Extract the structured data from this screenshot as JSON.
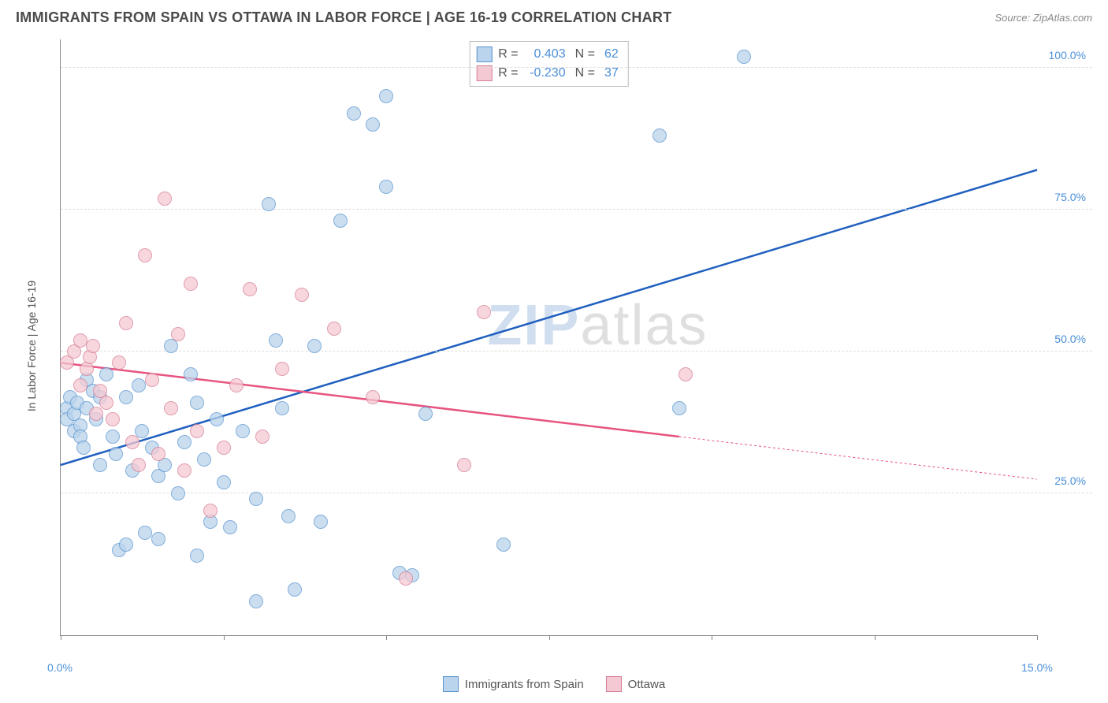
{
  "header": {
    "title": "IMMIGRANTS FROM SPAIN VS OTTAWA IN LABOR FORCE | AGE 16-19 CORRELATION CHART",
    "source": "Source: ZipAtlas.com"
  },
  "watermark": {
    "z": "ZIP",
    "rest": "atlas"
  },
  "chart": {
    "type": "scatter",
    "ylabel": "In Labor Force | Age 16-19",
    "xlim": [
      0,
      15
    ],
    "ylim": [
      0,
      105
    ],
    "yticks": [
      25,
      50,
      75,
      100
    ],
    "ytick_labels": [
      "25.0%",
      "50.0%",
      "75.0%",
      "100.0%"
    ],
    "xtick_positions": [
      0,
      2.5,
      5,
      7.5,
      10,
      12.5,
      15
    ],
    "xtick_labels_shown": {
      "0": "0.0%",
      "15": "15.0%"
    },
    "background_color": "#ffffff",
    "grid_color": "#dddddd",
    "axis_color": "#888888",
    "marker_radius": 9,
    "marker_border_width": 1.2,
    "series": [
      {
        "name": "Immigrants from Spain",
        "fill": "#b9d4ec",
        "stroke": "#5a94cf",
        "line_color": "#1f5fbf",
        "line_width": 2.5,
        "R": "0.403",
        "N": "62",
        "trend": {
          "x1": 0,
          "y1": 30,
          "x2": 15,
          "y2": 82
        },
        "points": [
          [
            0.1,
            40
          ],
          [
            0.1,
            38
          ],
          [
            0.15,
            42
          ],
          [
            0.2,
            36
          ],
          [
            0.2,
            39
          ],
          [
            0.25,
            41
          ],
          [
            0.3,
            37
          ],
          [
            0.3,
            35
          ],
          [
            0.35,
            33
          ],
          [
            0.4,
            40
          ],
          [
            0.4,
            45
          ],
          [
            0.5,
            43
          ],
          [
            0.55,
            38
          ],
          [
            0.6,
            42
          ],
          [
            0.6,
            30
          ],
          [
            0.7,
            46
          ],
          [
            0.8,
            35
          ],
          [
            0.85,
            32
          ],
          [
            0.9,
            15
          ],
          [
            1.0,
            42
          ],
          [
            1.0,
            16
          ],
          [
            1.1,
            29
          ],
          [
            1.2,
            44
          ],
          [
            1.25,
            36
          ],
          [
            1.3,
            18
          ],
          [
            1.4,
            33
          ],
          [
            1.5,
            28
          ],
          [
            1.5,
            17
          ],
          [
            1.6,
            30
          ],
          [
            1.7,
            51
          ],
          [
            1.8,
            25
          ],
          [
            1.9,
            34
          ],
          [
            2.0,
            46
          ],
          [
            2.1,
            41
          ],
          [
            2.1,
            14
          ],
          [
            2.2,
            31
          ],
          [
            2.3,
            20
          ],
          [
            2.4,
            38
          ],
          [
            2.5,
            27
          ],
          [
            2.6,
            19
          ],
          [
            2.8,
            36
          ],
          [
            3.0,
            24
          ],
          [
            3.0,
            6
          ],
          [
            3.2,
            76
          ],
          [
            3.3,
            52
          ],
          [
            3.4,
            40
          ],
          [
            3.5,
            21
          ],
          [
            3.6,
            8
          ],
          [
            3.9,
            51
          ],
          [
            4.0,
            20
          ],
          [
            4.3,
            73
          ],
          [
            4.5,
            92
          ],
          [
            4.8,
            90
          ],
          [
            5.0,
            79
          ],
          [
            5.2,
            11
          ],
          [
            5.4,
            10.5
          ],
          [
            5.6,
            39
          ],
          [
            6.8,
            16
          ],
          [
            9.2,
            88
          ],
          [
            9.5,
            40
          ],
          [
            10.5,
            102
          ],
          [
            5.0,
            95
          ]
        ]
      },
      {
        "name": "Ottawa",
        "fill": "#f5c9d3",
        "stroke": "#d67e94",
        "line_color": "#e75480",
        "line_width": 2.5,
        "R": "-0.230",
        "N": "37",
        "trend_solid": {
          "x1": 0,
          "y1": 48,
          "x2": 9.5,
          "y2": 35
        },
        "trend_dashed": {
          "x1": 9.5,
          "y1": 35,
          "x2": 15,
          "y2": 27.5
        },
        "points": [
          [
            0.1,
            48
          ],
          [
            0.2,
            50
          ],
          [
            0.3,
            52
          ],
          [
            0.3,
            44
          ],
          [
            0.4,
            47
          ],
          [
            0.45,
            49
          ],
          [
            0.5,
            51
          ],
          [
            0.55,
            39
          ],
          [
            0.6,
            43
          ],
          [
            0.7,
            41
          ],
          [
            0.8,
            38
          ],
          [
            0.9,
            48
          ],
          [
            1.0,
            55
          ],
          [
            1.1,
            34
          ],
          [
            1.2,
            30
          ],
          [
            1.3,
            67
          ],
          [
            1.4,
            45
          ],
          [
            1.5,
            32
          ],
          [
            1.6,
            77
          ],
          [
            1.7,
            40
          ],
          [
            1.8,
            53
          ],
          [
            1.9,
            29
          ],
          [
            2.0,
            62
          ],
          [
            2.1,
            36
          ],
          [
            2.3,
            22
          ],
          [
            2.5,
            33
          ],
          [
            2.7,
            44
          ],
          [
            2.9,
            61
          ],
          [
            3.1,
            35
          ],
          [
            3.4,
            47
          ],
          [
            3.7,
            60
          ],
          [
            4.2,
            54
          ],
          [
            4.8,
            42
          ],
          [
            5.3,
            10
          ],
          [
            6.2,
            30
          ],
          [
            6.5,
            57
          ],
          [
            9.6,
            46
          ]
        ]
      }
    ]
  },
  "stats_legend": {
    "R_label": "R =",
    "N_label": "N ="
  },
  "bottom_legend": {
    "items": [
      "Immigrants from Spain",
      "Ottawa"
    ]
  }
}
